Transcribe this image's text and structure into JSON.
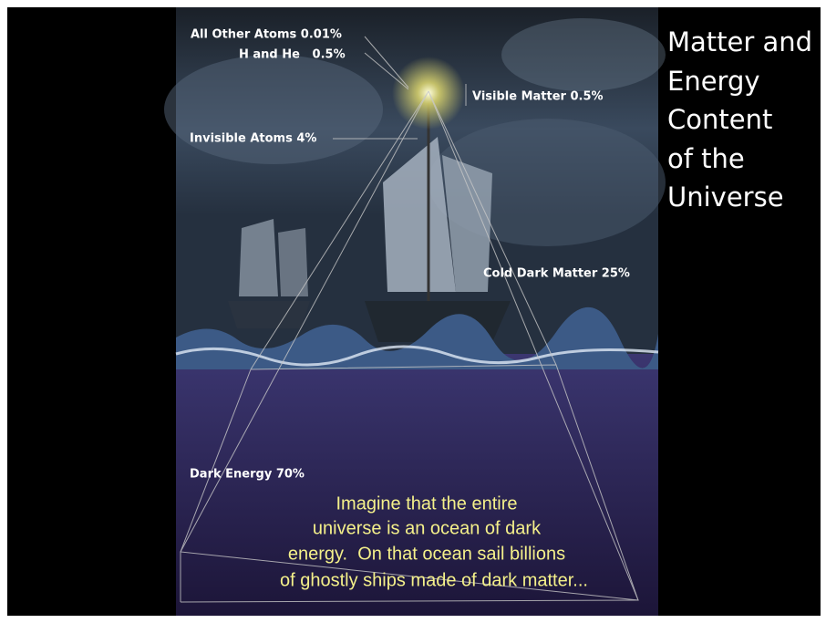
{
  "title": {
    "lines": [
      "Matter and",
      "Energy",
      "Content",
      "of the",
      "Universe"
    ]
  },
  "labels": [
    {
      "text": "All Other Atoms 0.01%"
    },
    {
      "text": "H and He   0.5%"
    },
    {
      "text": "Visible Matter 0.5%"
    },
    {
      "text": "Invisible Atoms 4%"
    },
    {
      "text": "Cold Dark Matter 25%"
    },
    {
      "text": "Dark Energy 70%"
    }
  ],
  "caption": {
    "lines": [
      "Imagine that the entire",
      "universe is an ocean of dark",
      "energy.  On that ocean sail billions",
      "of ghostly ships made of dark matter..."
    ]
  }
}
